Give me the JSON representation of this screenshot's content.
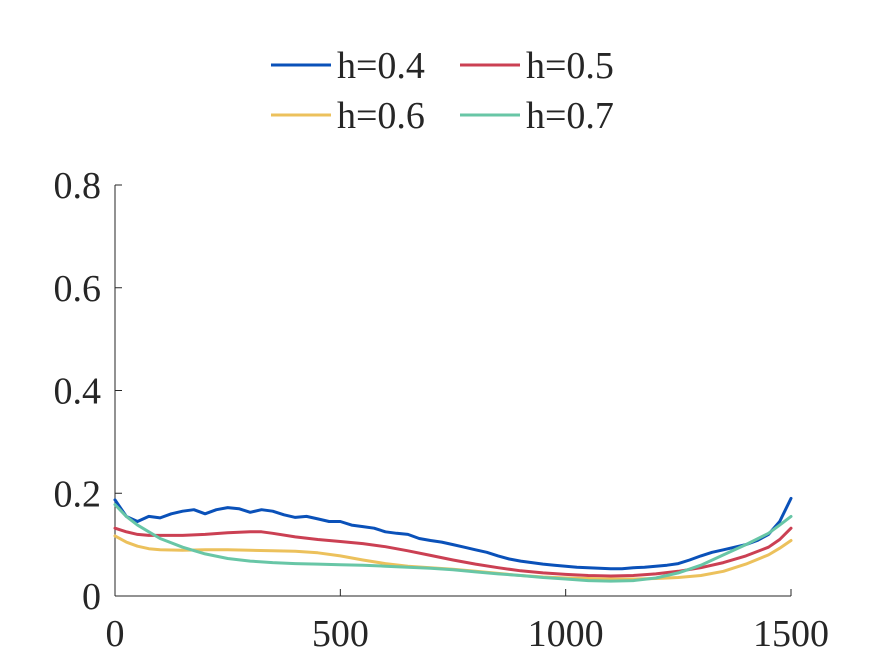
{
  "chart_data": {
    "type": "line",
    "title": "",
    "xlabel": "",
    "ylabel": "",
    "xlim": [
      0,
      1500
    ],
    "ylim": [
      0,
      0.8
    ],
    "xticks": [
      0,
      500,
      1000,
      1500
    ],
    "xtick_labels": [
      "0",
      "500",
      "1000",
      "1500"
    ],
    "yticks": [
      0,
      0.2,
      0.4,
      0.6,
      0.8
    ],
    "ytick_labels": [
      "0",
      "0.2",
      "0.4",
      "0.6",
      "0.8"
    ],
    "grid": false,
    "legend_position": "top",
    "series": [
      {
        "name": "h=0.4",
        "color": "#0a51b9",
        "x": [
          0,
          25,
          50,
          75,
          100,
          125,
          150,
          175,
          200,
          225,
          250,
          275,
          300,
          325,
          350,
          375,
          400,
          425,
          450,
          475,
          500,
          525,
          550,
          575,
          600,
          625,
          650,
          675,
          700,
          725,
          750,
          775,
          800,
          825,
          850,
          875,
          900,
          925,
          950,
          975,
          1000,
          1025,
          1050,
          1075,
          1100,
          1125,
          1150,
          1175,
          1200,
          1225,
          1250,
          1275,
          1300,
          1325,
          1350,
          1375,
          1400,
          1425,
          1450,
          1475,
          1500
        ],
        "y": [
          0.187,
          0.155,
          0.145,
          0.155,
          0.152,
          0.16,
          0.165,
          0.168,
          0.16,
          0.168,
          0.172,
          0.17,
          0.163,
          0.168,
          0.165,
          0.158,
          0.153,
          0.155,
          0.15,
          0.145,
          0.145,
          0.138,
          0.135,
          0.132,
          0.125,
          0.122,
          0.12,
          0.112,
          0.108,
          0.105,
          0.1,
          0.095,
          0.09,
          0.085,
          0.078,
          0.072,
          0.068,
          0.065,
          0.062,
          0.06,
          0.058,
          0.056,
          0.055,
          0.054,
          0.053,
          0.053,
          0.055,
          0.056,
          0.058,
          0.06,
          0.063,
          0.07,
          0.078,
          0.085,
          0.09,
          0.095,
          0.1,
          0.108,
          0.12,
          0.145,
          0.19
        ]
      },
      {
        "name": "h=0.5",
        "color": "#cb4053",
        "x": [
          0,
          25,
          50,
          75,
          100,
          150,
          200,
          250,
          300,
          325,
          350,
          400,
          450,
          500,
          550,
          600,
          650,
          700,
          750,
          800,
          850,
          900,
          950,
          1000,
          1050,
          1100,
          1150,
          1200,
          1250,
          1300,
          1350,
          1400,
          1450,
          1475,
          1500
        ],
        "y": [
          0.132,
          0.125,
          0.12,
          0.118,
          0.118,
          0.118,
          0.12,
          0.123,
          0.125,
          0.125,
          0.122,
          0.115,
          0.11,
          0.106,
          0.102,
          0.096,
          0.088,
          0.079,
          0.07,
          0.062,
          0.055,
          0.049,
          0.045,
          0.042,
          0.04,
          0.039,
          0.04,
          0.043,
          0.048,
          0.055,
          0.065,
          0.078,
          0.095,
          0.11,
          0.132
        ]
      },
      {
        "name": "h=0.6",
        "color": "#ecc15c",
        "x": [
          0,
          25,
          50,
          75,
          100,
          150,
          200,
          250,
          300,
          350,
          400,
          450,
          500,
          550,
          600,
          650,
          700,
          750,
          800,
          850,
          900,
          950,
          1000,
          1050,
          1100,
          1150,
          1200,
          1250,
          1300,
          1350,
          1400,
          1450,
          1475,
          1500
        ],
        "y": [
          0.117,
          0.105,
          0.097,
          0.092,
          0.09,
          0.089,
          0.09,
          0.09,
          0.089,
          0.088,
          0.087,
          0.084,
          0.078,
          0.07,
          0.063,
          0.058,
          0.055,
          0.052,
          0.048,
          0.044,
          0.04,
          0.037,
          0.035,
          0.034,
          0.033,
          0.033,
          0.034,
          0.036,
          0.04,
          0.048,
          0.062,
          0.08,
          0.093,
          0.108
        ]
      },
      {
        "name": "h=0.7",
        "color": "#68c6a6",
        "x": [
          0,
          25,
          50,
          75,
          100,
          150,
          200,
          250,
          300,
          350,
          400,
          450,
          500,
          550,
          600,
          650,
          700,
          750,
          800,
          850,
          900,
          950,
          1000,
          1050,
          1100,
          1150,
          1200,
          1250,
          1300,
          1350,
          1400,
          1450,
          1475,
          1500
        ],
        "y": [
          0.178,
          0.155,
          0.138,
          0.125,
          0.112,
          0.095,
          0.082,
          0.073,
          0.068,
          0.065,
          0.063,
          0.062,
          0.061,
          0.06,
          0.058,
          0.056,
          0.054,
          0.051,
          0.047,
          0.043,
          0.04,
          0.036,
          0.033,
          0.03,
          0.029,
          0.03,
          0.035,
          0.045,
          0.06,
          0.08,
          0.1,
          0.122,
          0.138,
          0.155
        ]
      }
    ]
  }
}
